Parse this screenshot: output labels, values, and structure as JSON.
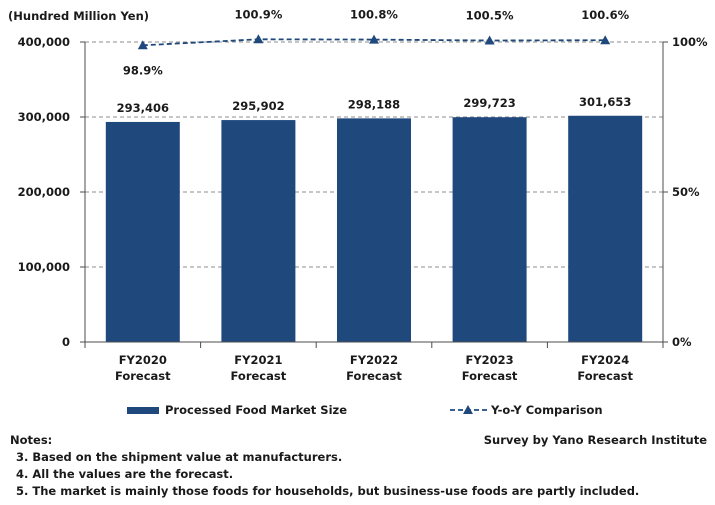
{
  "chart_data": {
    "type": "bar",
    "title": "",
    "unit_label": "(Hundred Million Yen)",
    "categories": [
      [
        "FY2020",
        "Forecast"
      ],
      [
        "FY2021",
        "Forecast"
      ],
      [
        "FY2022",
        "Forecast"
      ],
      [
        "FY2023",
        "Forecast"
      ],
      [
        "FY2024",
        "Forecast"
      ]
    ],
    "series": [
      {
        "name": "Processed Food Market Size",
        "type": "bar",
        "axis": "left",
        "color": "#1f497d",
        "values": [
          293406,
          295902,
          298188,
          299723,
          301653
        ],
        "labels": [
          "293,406",
          "295,902",
          "298,188",
          "299,723",
          "301,653"
        ]
      },
      {
        "name": "Y-o-Y Comparison",
        "type": "line",
        "axis": "right",
        "color": "#1f497d",
        "line_style": "dashed",
        "marker": "triangle",
        "values": [
          98.9,
          100.9,
          100.8,
          100.5,
          100.6
        ],
        "labels": [
          "98.9%",
          "100.9%",
          "100.8%",
          "100.5%",
          "100.6%"
        ]
      }
    ],
    "y_left": {
      "min": 0,
      "max": 400000,
      "ticks": [
        0,
        100000,
        200000,
        300000,
        400000
      ],
      "tick_labels": [
        "0",
        "100,000",
        "200,000",
        "300,000",
        "400,000"
      ]
    },
    "y_right": {
      "min": 0,
      "max": 100,
      "ticks": [
        0,
        50,
        100
      ],
      "tick_labels": [
        "0%",
        "50%",
        "100%"
      ]
    },
    "grid": "horizontal dashed",
    "legend_position": "bottom"
  },
  "notes": {
    "heading": "Notes:",
    "items": [
      "3. Based on the shipment value at manufacturers.",
      "4.  All the values are the forecast.",
      "5.  The market is mainly those foods for households, but business-use foods are partly included."
    ],
    "source": "Survey by Yano Research Institute"
  }
}
